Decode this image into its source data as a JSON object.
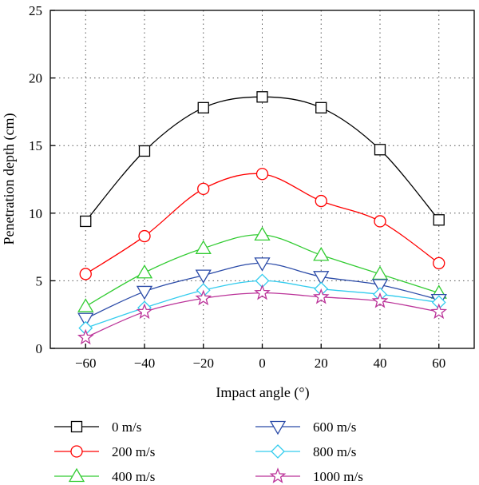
{
  "chart_data": {
    "type": "line",
    "title": "",
    "xlabel": "Impact angle (°)",
    "ylabel": "Penetration depth (cm)",
    "xlim": [
      -72,
      72
    ],
    "ylim": [
      0,
      25
    ],
    "xticks": [
      -60,
      -40,
      -20,
      0,
      20,
      40,
      60
    ],
    "yticks": [
      0,
      5,
      10,
      15,
      20,
      25
    ],
    "grid": true,
    "legend_position": "bottom",
    "x": [
      -60,
      -40,
      -20,
      0,
      20,
      40,
      60
    ],
    "series": [
      {
        "name": "0 m/s",
        "marker": "square",
        "color": "#000000",
        "values": [
          9.4,
          14.6,
          17.8,
          18.6,
          17.8,
          14.7,
          9.5
        ]
      },
      {
        "name": "200 m/s",
        "marker": "circle",
        "color": "#ff0000",
        "values": [
          5.5,
          8.3,
          11.8,
          12.9,
          10.9,
          9.4,
          6.3
        ]
      },
      {
        "name": "400 m/s",
        "marker": "triangle-up",
        "color": "#33cc33",
        "values": [
          3.1,
          5.6,
          7.4,
          8.4,
          6.9,
          5.5,
          4.1
        ]
      },
      {
        "name": "600 m/s",
        "marker": "triangle-down",
        "color": "#2b4ba8",
        "values": [
          2.2,
          4.2,
          5.4,
          6.3,
          5.3,
          4.7,
          3.6
        ]
      },
      {
        "name": "800 m/s",
        "marker": "diamond",
        "color": "#33ccee",
        "values": [
          1.5,
          3.0,
          4.3,
          5.0,
          4.4,
          4.0,
          3.4
        ]
      },
      {
        "name": "1000 m/s",
        "marker": "star",
        "color": "#bb3399",
        "values": [
          0.8,
          2.7,
          3.7,
          4.1,
          3.8,
          3.5,
          2.7
        ]
      }
    ]
  }
}
